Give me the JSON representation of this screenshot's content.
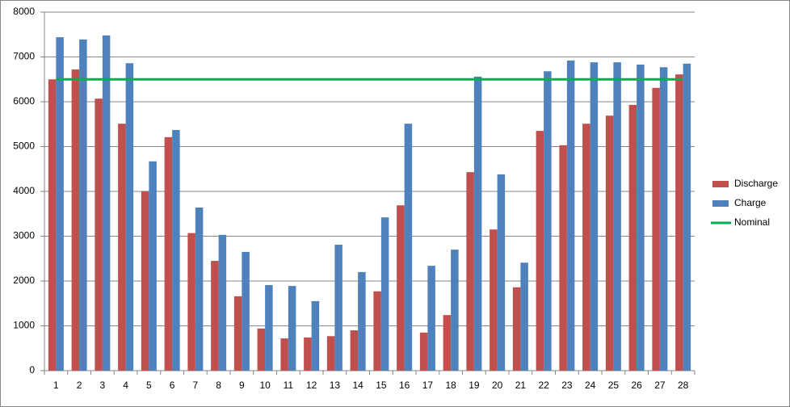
{
  "chart_data": {
    "type": "bar",
    "categories": [
      "1",
      "2",
      "3",
      "4",
      "5",
      "6",
      "7",
      "8",
      "9",
      "10",
      "11",
      "12",
      "13",
      "14",
      "15",
      "16",
      "17",
      "18",
      "19",
      "20",
      "21",
      "22",
      "23",
      "24",
      "25",
      "26",
      "27",
      "28"
    ],
    "series": [
      {
        "name": "Discharge",
        "type": "bar",
        "color": "#c0504d",
        "values": [
          6500,
          6720,
          6070,
          5510,
          4000,
          5210,
          3070,
          2450,
          1660,
          940,
          720,
          740,
          770,
          900,
          1770,
          3690,
          850,
          1240,
          4430,
          3150,
          1860,
          5350,
          5030,
          5510,
          5690,
          5930,
          6310,
          6610
        ]
      },
      {
        "name": "Charge",
        "type": "bar",
        "color": "#4f81bd",
        "values": [
          7440,
          7390,
          7480,
          6860,
          4670,
          5370,
          3640,
          3030,
          2650,
          1910,
          1890,
          1550,
          2810,
          2200,
          3420,
          5510,
          2340,
          2700,
          6560,
          4380,
          2410,
          6680,
          6920,
          6880,
          6880,
          6830,
          6770,
          6850
        ]
      },
      {
        "name": "Nominal",
        "type": "line",
        "color": "#00b050",
        "values": [
          6500,
          6500,
          6500,
          6500,
          6500,
          6500,
          6500,
          6500,
          6500,
          6500,
          6500,
          6500,
          6500,
          6500,
          6500,
          6500,
          6500,
          6500,
          6500,
          6500,
          6500,
          6500,
          6500,
          6500,
          6500,
          6500,
          6500,
          6500
        ]
      }
    ],
    "ylim": [
      0,
      8000
    ],
    "yticks": [
      0,
      1000,
      2000,
      3000,
      4000,
      5000,
      6000,
      7000,
      8000
    ],
    "grid": true,
    "legend": "right"
  }
}
